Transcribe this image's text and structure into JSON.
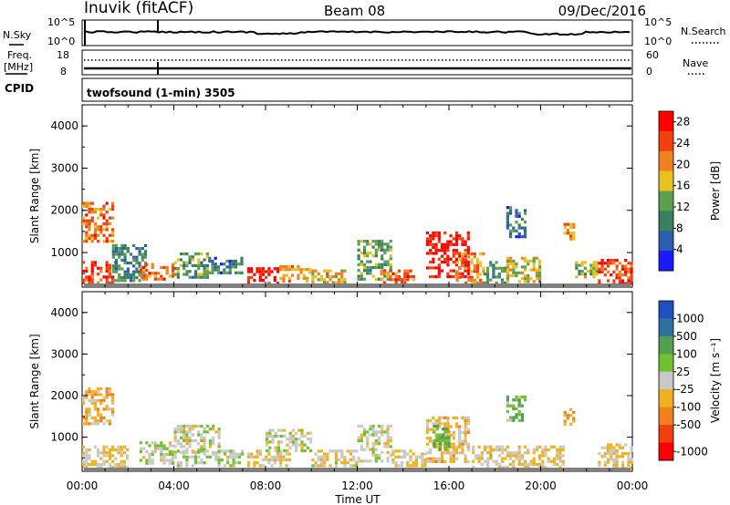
{
  "header": {
    "station": "Inuvik (fitACF)",
    "beam": "Beam 08",
    "date": "09/Dec/2016"
  },
  "status_panels": {
    "nsky_label": "N.Sky",
    "nsky_ticks": [
      "10^5",
      "10^0"
    ],
    "nsearch_label": "N.Search",
    "nsearch_ticks": [
      "10^5",
      "10^0"
    ],
    "freq_label": "Freq.",
    "freq_unit": "[MHz]",
    "freq_ticks": [
      "18",
      "8"
    ],
    "nave_label": "Nave",
    "nave_ticks": [
      "60",
      "0"
    ],
    "cpid_label": "CPID",
    "cpid_value": "twofsound (1-min) 3505"
  },
  "time_axis": {
    "ticks": [
      "00:00",
      "04:00",
      "08:00",
      "12:00",
      "16:00",
      "20:00",
      "00:00"
    ],
    "label": "Time UT"
  },
  "colors": {
    "power": [
      "#1a1aff",
      "#2a5fb0",
      "#3a8060",
      "#5aa050",
      "#e8c020",
      "#f08020",
      "#f04010",
      "#ff0000"
    ],
    "velocity": [
      "#2050c0",
      "#3070a0",
      "#50a050",
      "#70c030",
      "#c8c8c8",
      "#f0b020",
      "#f08020",
      "#f04010",
      "#ff0000"
    ],
    "ground": "#808080"
  },
  "chart_data": [
    {
      "type": "heatmap",
      "title": "Power",
      "xlabel": "",
      "ylabel": "Slant Range [km]",
      "x_unit": "hours UT",
      "xlim": [
        0,
        24
      ],
      "ylim": [
        180,
        4500
      ],
      "yticks": [
        "1000",
        "2000",
        "3000",
        "4000"
      ],
      "colorbar": {
        "label": "Power [dB]",
        "ticks": [
          "4",
          "8",
          "12",
          "16",
          "20",
          "24",
          "28"
        ],
        "range": [
          0,
          30
        ]
      },
      "regions": [
        {
          "t": [
            0.0,
            1.3
          ],
          "r": [
            1300,
            2200
          ],
          "level": 22
        },
        {
          "t": [
            0.0,
            1.5
          ],
          "r": [
            300,
            800
          ],
          "level": 26
        },
        {
          "t": [
            1.3,
            2.8
          ],
          "r": [
            350,
            1200
          ],
          "level": 10
        },
        {
          "t": [
            2.5,
            4.0
          ],
          "r": [
            400,
            750
          ],
          "level": 22
        },
        {
          "t": [
            4.0,
            5.5
          ],
          "r": [
            400,
            1000
          ],
          "level": 12
        },
        {
          "t": [
            5.5,
            7.0
          ],
          "r": [
            500,
            900
          ],
          "level": 8
        },
        {
          "t": [
            7.2,
            8.6
          ],
          "r": [
            250,
            650
          ],
          "level": 28
        },
        {
          "t": [
            8.6,
            10.0
          ],
          "r": [
            300,
            700
          ],
          "level": 20
        },
        {
          "t": [
            10.0,
            11.5
          ],
          "r": [
            300,
            600
          ],
          "level": 18
        },
        {
          "t": [
            12.0,
            13.5
          ],
          "r": [
            400,
            1300
          ],
          "level": 12
        },
        {
          "t": [
            13.0,
            14.5
          ],
          "r": [
            300,
            600
          ],
          "level": 22
        },
        {
          "t": [
            15.0,
            16.8
          ],
          "r": [
            400,
            1500
          ],
          "level": 28
        },
        {
          "t": [
            16.3,
            17.5
          ],
          "r": [
            300,
            1000
          ],
          "level": 20
        },
        {
          "t": [
            17.5,
            18.5
          ],
          "r": [
            300,
            800
          ],
          "level": 10
        },
        {
          "t": [
            18.5,
            19.3
          ],
          "r": [
            1400,
            2100
          ],
          "level": 8
        },
        {
          "t": [
            18.5,
            20.0
          ],
          "r": [
            300,
            900
          ],
          "level": 16
        },
        {
          "t": [
            21.0,
            21.5
          ],
          "r": [
            1300,
            1700
          ],
          "level": 20
        },
        {
          "t": [
            21.5,
            22.5
          ],
          "r": [
            400,
            800
          ],
          "level": 14
        },
        {
          "t": [
            22.5,
            24.0
          ],
          "r": [
            250,
            850
          ],
          "level": 26
        }
      ]
    },
    {
      "type": "heatmap",
      "title": "Velocity",
      "xlabel": "Time UT",
      "ylabel": "Slant Range [km]",
      "x_unit": "hours UT",
      "xlim": [
        0,
        24
      ],
      "ylim": [
        180,
        4500
      ],
      "yticks": [
        "1000",
        "2000",
        "3000",
        "4000"
      ],
      "colorbar": {
        "label": "Velocity [m s⁻¹]",
        "ticks": [
          "1000",
          "500",
          "100",
          "25",
          "-25",
          "-100",
          "-500",
          "-1000"
        ],
        "range": [
          -1200,
          1200
        ]
      },
      "regions": [
        {
          "t": [
            0.0,
            1.3
          ],
          "r": [
            1300,
            2200
          ],
          "level": -300
        },
        {
          "t": [
            0.0,
            2.0
          ],
          "r": [
            300,
            800
          ],
          "level": -150
        },
        {
          "t": [
            2.5,
            4.0
          ],
          "r": [
            400,
            900
          ],
          "level": 60
        },
        {
          "t": [
            4.0,
            6.0
          ],
          "r": [
            600,
            1300
          ],
          "level": 0
        },
        {
          "t": [
            4.0,
            7.0
          ],
          "r": [
            300,
            700
          ],
          "level": 80
        },
        {
          "t": [
            7.2,
            9.0
          ],
          "r": [
            300,
            700
          ],
          "level": -150
        },
        {
          "t": [
            8.0,
            10.0
          ],
          "r": [
            700,
            1200
          ],
          "level": 0
        },
        {
          "t": [
            10.0,
            12.0
          ],
          "r": [
            300,
            700
          ],
          "level": -80
        },
        {
          "t": [
            12.0,
            13.5
          ],
          "r": [
            400,
            1300
          ],
          "level": 0
        },
        {
          "t": [
            13.5,
            15.0
          ],
          "r": [
            300,
            700
          ],
          "level": -150
        },
        {
          "t": [
            15.0,
            16.8
          ],
          "r": [
            400,
            1500
          ],
          "level": -200
        },
        {
          "t": [
            15.3,
            16.0
          ],
          "r": [
            700,
            1300
          ],
          "level": 400
        },
        {
          "t": [
            17.0,
            18.5
          ],
          "r": [
            300,
            800
          ],
          "level": -100
        },
        {
          "t": [
            18.5,
            19.3
          ],
          "r": [
            1400,
            2000
          ],
          "level": 300
        },
        {
          "t": [
            18.5,
            21.0
          ],
          "r": [
            300,
            800
          ],
          "level": -150
        },
        {
          "t": [
            21.0,
            21.5
          ],
          "r": [
            1300,
            1700
          ],
          "level": -400
        },
        {
          "t": [
            22.5,
            24.0
          ],
          "r": [
            250,
            850
          ],
          "level": -150
        }
      ]
    }
  ]
}
